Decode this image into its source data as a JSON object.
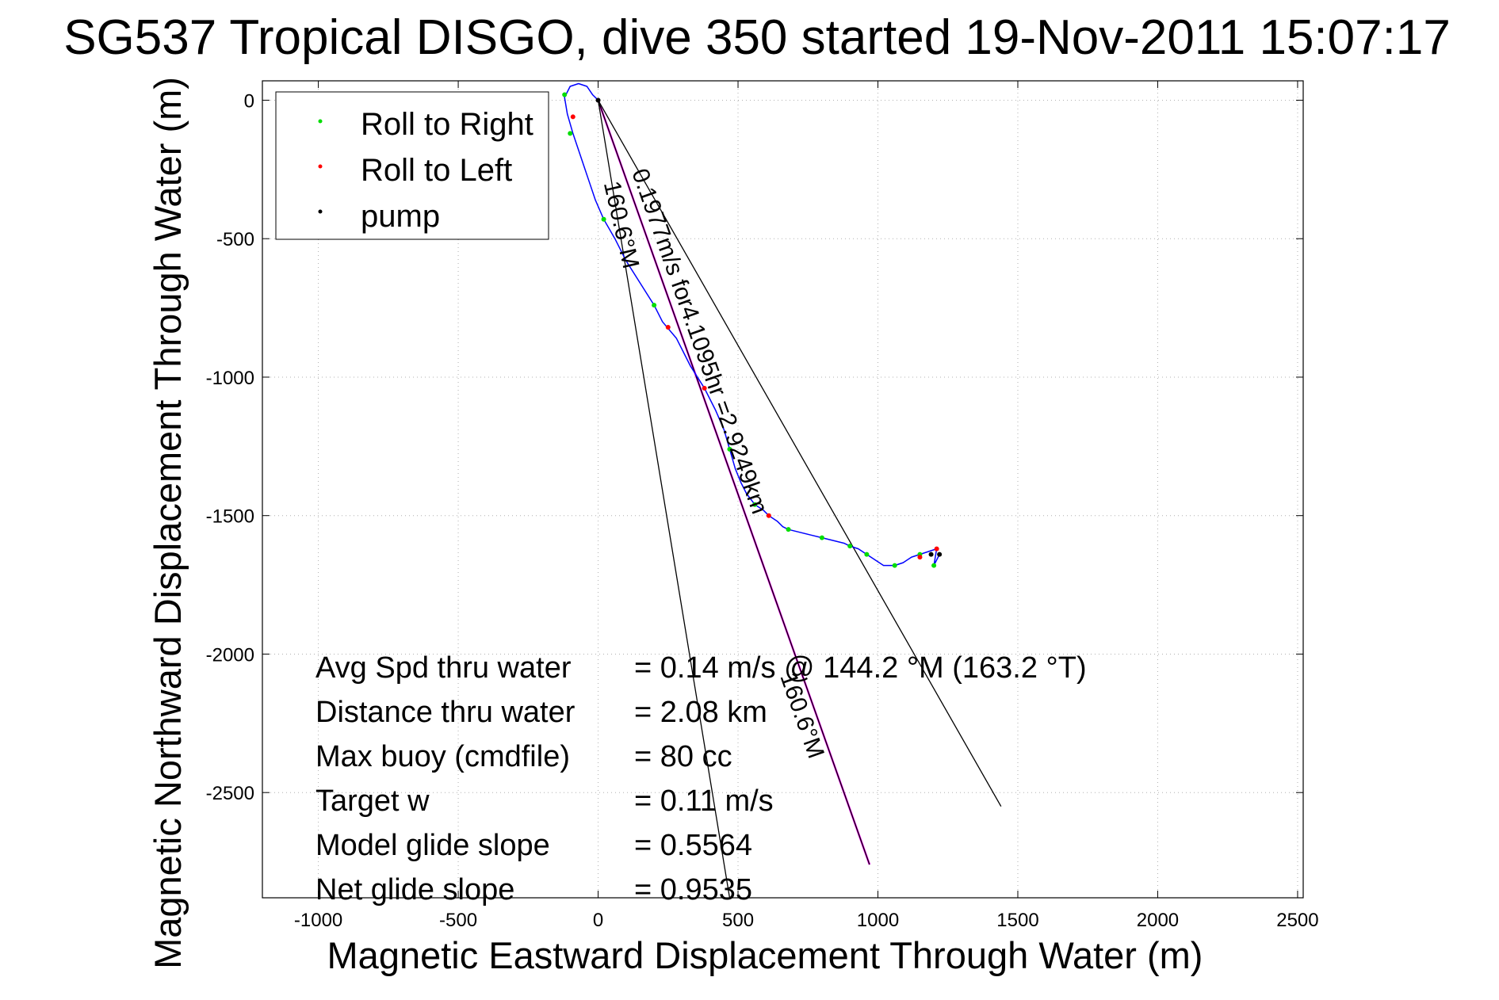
{
  "chart_data": {
    "type": "line",
    "title": "SG537 Tropical DISGO, dive 350 started 19-Nov-2011 15:07:17",
    "xlabel": "Magnetic Eastward Displacement Through Water (m)",
    "ylabel": "Magnetic Northward Displacement Through Water (m)",
    "xlim": [
      -1200,
      2520
    ],
    "ylim": [
      -2880,
      70
    ],
    "xticks": [
      -1000,
      -500,
      0,
      500,
      1000,
      1500,
      2000,
      2500
    ],
    "yticks": [
      0,
      -500,
      -1000,
      -1500,
      -2000,
      -2500
    ],
    "grid": true,
    "legend_position": "top-left",
    "legend": [
      {
        "label": "Roll to Right",
        "color": "#00dd00"
      },
      {
        "label": "Roll to Left",
        "color": "#ff0000"
      },
      {
        "label": "pump",
        "color": "#000000"
      }
    ],
    "track": {
      "name": "glider track",
      "color": "#0000ff",
      "x": [
        0,
        -20,
        -40,
        -70,
        -100,
        -120,
        -110,
        -90,
        -70,
        -50,
        -30,
        -10,
        20,
        60,
        100,
        150,
        200,
        230,
        280,
        300,
        330,
        380,
        420,
        450,
        470,
        490,
        510,
        530,
        560,
        590,
        610,
        640,
        660,
        680,
        720,
        760,
        800,
        840,
        880,
        900,
        930,
        960,
        990,
        1020,
        1060,
        1090,
        1120,
        1150,
        1180,
        1210,
        1200,
        1220
      ],
      "y": [
        0,
        20,
        50,
        60,
        50,
        10,
        -50,
        -120,
        -180,
        -240,
        -300,
        -360,
        -430,
        -500,
        -580,
        -660,
        -740,
        -800,
        -860,
        -900,
        -960,
        -1040,
        -1120,
        -1190,
        -1260,
        -1330,
        -1380,
        -1420,
        -1460,
        -1480,
        -1500,
        -1520,
        -1540,
        -1550,
        -1560,
        -1570,
        -1580,
        -1590,
        -1600,
        -1610,
        -1620,
        -1640,
        -1660,
        -1680,
        -1680,
        -1670,
        -1650,
        -1640,
        -1630,
        -1620,
        -1680,
        -1640
      ]
    },
    "markers": {
      "roll_right": {
        "x": [
          -120,
          -100,
          20,
          200,
          470,
          560,
          680,
          800,
          900,
          960,
          1060,
          1150,
          1200
        ],
        "y": [
          20,
          -120,
          -430,
          -740,
          -1260,
          -1460,
          -1550,
          -1580,
          -1610,
          -1640,
          -1680,
          -1640,
          -1680
        ]
      },
      "roll_left": {
        "x": [
          -90,
          250,
          380,
          610,
          1150,
          1210
        ],
        "y": [
          -60,
          -820,
          -1040,
          -1500,
          -1650,
          -1620
        ]
      },
      "pump": {
        "x": [
          0,
          1190,
          1220
        ],
        "y": [
          0,
          -1640,
          -1640
        ]
      }
    },
    "lines": [
      {
        "name": "heading line",
        "color": "#ff00ff",
        "x": [
          0,
          970
        ],
        "y": [
          0,
          -2760
        ]
      },
      {
        "name": "heading line overlay",
        "color": "#000000",
        "x": [
          0,
          970
        ],
        "y": [
          0,
          -2760
        ]
      },
      {
        "name": "envelope right",
        "color": "#000000",
        "x": [
          0,
          1440
        ],
        "y": [
          0,
          -2550
        ]
      },
      {
        "name": "envelope left",
        "color": "#000000",
        "x": [
          0,
          470
        ],
        "y": [
          0,
          -2880
        ]
      }
    ],
    "annotations": [
      {
        "text": "0.1977m/s for4.1095hr =2.9249km",
        "x": 120,
        "y": -260,
        "angle": 70.5
      },
      {
        "text": "160.6°M",
        "x": 20,
        "y": -300,
        "angle": 77
      },
      {
        "text": "160.6°M",
        "x": 650,
        "y": -2080,
        "angle": 70.5
      }
    ]
  },
  "stats": [
    {
      "label": "Avg Spd thru water",
      "value": "=  0.14 m/s @ 144.2 °M (163.2 °T)"
    },
    {
      "label": "Distance thru water",
      "value": "=  2.08 km"
    },
    {
      "label": "Max buoy (cmdfile)",
      "value": "= 80 cc"
    },
    {
      "label": "Target w",
      "value": "= 0.11 m/s"
    },
    {
      "label": "Model glide slope",
      "value": "= 0.5564"
    },
    {
      "label": "Net glide slope",
      "value": "= 0.9535"
    }
  ]
}
